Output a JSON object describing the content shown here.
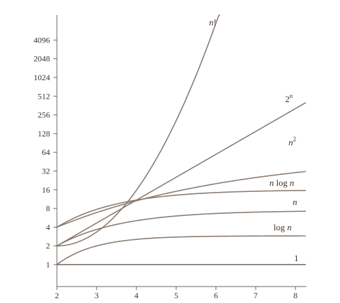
{
  "chart_data": {
    "type": "line",
    "title": "",
    "xlabel": "",
    "ylabel": "",
    "y_scale": "log2",
    "xlim": [
      2,
      8.25
    ],
    "ylim": [
      0.6,
      11000
    ],
    "x_ticks": [
      "2",
      "3",
      "4",
      "5",
      "6",
      "7",
      "8"
    ],
    "y_ticks": [
      "1",
      "2",
      "4",
      "8",
      "16",
      "32",
      "64",
      "128",
      "256",
      "512",
      "1024",
      "2048",
      "4096"
    ],
    "grid": false,
    "curve_color": "#8a7b70",
    "constant_color": "#6b625b",
    "series": [
      {
        "id": "factorial",
        "function": "factorial",
        "label_main": "n",
        "label_suffix": "!",
        "label_sup": "",
        "x_end": 6.28
      },
      {
        "id": "exponential",
        "function": "exp2",
        "label_main": "2",
        "label_suffix": "",
        "label_sup": "n",
        "x_end": 8.25
      },
      {
        "id": "quadratic",
        "function": "square_bounded",
        "label_main": "n",
        "label_suffix": "",
        "label_sup": "2",
        "x_end": 8.25
      },
      {
        "id": "nlogn",
        "function": "nlogn_bounded",
        "label_main": "n log n",
        "label_suffix": "",
        "label_sup": "",
        "x_end": 8.25
      },
      {
        "id": "linear",
        "function": "linear_bounded",
        "label_main": "n",
        "label_suffix": "",
        "label_sup": "",
        "x_end": 8.25
      },
      {
        "id": "logarithmic",
        "function": "log_bounded",
        "label_main": "log n",
        "label_suffix": "",
        "label_sup": "",
        "x_end": 8.25
      },
      {
        "id": "constant",
        "function": "constant",
        "label_main": "1",
        "label_suffix": "",
        "label_sup": "",
        "x_end": 8.25
      }
    ]
  }
}
